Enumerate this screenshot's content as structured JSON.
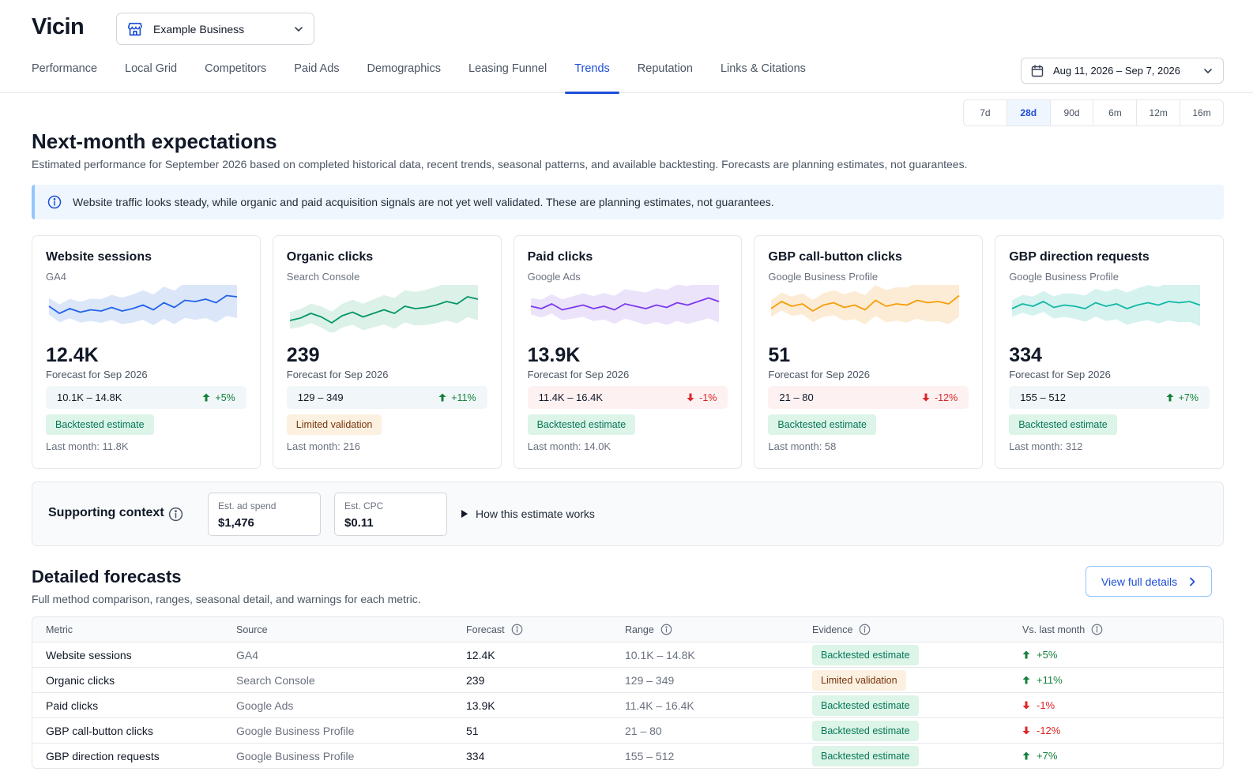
{
  "app": {
    "logo": "Vicin",
    "business": "Example Business"
  },
  "nav": {
    "items": [
      {
        "label": "Performance",
        "active": false
      },
      {
        "label": "Local Grid",
        "active": false
      },
      {
        "label": "Competitors",
        "active": false
      },
      {
        "label": "Paid Ads",
        "active": false
      },
      {
        "label": "Demographics",
        "active": false
      },
      {
        "label": "Leasing Funnel",
        "active": false
      },
      {
        "label": "Trends",
        "active": true
      },
      {
        "label": "Reputation",
        "active": false
      },
      {
        "label": "Links & Citations",
        "active": false
      }
    ]
  },
  "date_range": "Aug 11, 2026 – Sep 7, 2026",
  "ranges": {
    "options": [
      "7d",
      "28d",
      "90d",
      "6m",
      "12m",
      "16m"
    ],
    "selected": "28d"
  },
  "page": {
    "title": "Next-month expectations",
    "subtitle": "Estimated performance for September 2026 based on completed historical data, recent trends, seasonal patterns, and available backtesting. Forecasts are planning estimates, not guarantees.",
    "banner": "Website traffic looks steady, while organic and paid acquisition signals are not yet well validated. These are planning estimates, not guarantees."
  },
  "cards": [
    {
      "title": "Website sessions",
      "source": "GA4",
      "value": "12.4K",
      "forecast_label": "Forecast for Sep 2026",
      "range": "10.1K – 14.8K",
      "delta": "+5%",
      "direction": "up",
      "badge": "Backtested estimate",
      "badge_type": "green",
      "last_month": "Last month: 11.8K",
      "color": "#2563eb",
      "band_color": "#dbe6f9",
      "spark": [
        52,
        46,
        50,
        47,
        49,
        48,
        51,
        48,
        50,
        53,
        49,
        55,
        51,
        57,
        56,
        58,
        55,
        61,
        60
      ]
    },
    {
      "title": "Organic clicks",
      "source": "Search Console",
      "value": "239",
      "forecast_label": "Forecast for Sep 2026",
      "range": "129 – 349",
      "delta": "+11%",
      "direction": "up",
      "badge": "Limited validation",
      "badge_type": "amber",
      "last_month": "Last month: 216",
      "color": "#059669",
      "band_color": "#dcf1e8",
      "spark": [
        40,
        42,
        46,
        43,
        38,
        44,
        47,
        43,
        46,
        49,
        46,
        52,
        50,
        51,
        53,
        56,
        54,
        60,
        58
      ]
    },
    {
      "title": "Paid clicks",
      "source": "Google Ads",
      "value": "13.9K",
      "forecast_label": "Forecast for Sep 2026",
      "range": "11.4K – 16.4K",
      "delta": "-1%",
      "direction": "down",
      "badge": "Backtested estimate",
      "badge_type": "green",
      "last_month": "Last month: 14.0K",
      "color": "#7c3aed",
      "band_color": "#ebe3fa",
      "spark": [
        52,
        50,
        54,
        49,
        51,
        53,
        50,
        52,
        49,
        54,
        52,
        50,
        53,
        51,
        55,
        53,
        56,
        59,
        56
      ]
    },
    {
      "title": "GBP call-button clicks",
      "source": "Google Business Profile",
      "value": "51",
      "forecast_label": "Forecast for Sep 2026",
      "range": "21 – 80",
      "delta": "-12%",
      "direction": "down",
      "badge": "Backtested estimate",
      "badge_type": "green",
      "last_month": "Last month: 58",
      "color": "#f59e0b",
      "band_color": "#fcecd5",
      "spark": [
        50,
        56,
        52,
        54,
        48,
        53,
        55,
        51,
        53,
        49,
        57,
        52,
        54,
        53,
        57,
        55,
        56,
        54,
        61
      ]
    },
    {
      "title": "GBP direction requests",
      "source": "Google Business Profile",
      "value": "334",
      "forecast_label": "Forecast for Sep 2026",
      "range": "155 – 512",
      "delta": "+7%",
      "direction": "up",
      "badge": "Backtested estimate",
      "badge_type": "green",
      "last_month": "Last month: 312",
      "color": "#14b8a6",
      "band_color": "#d5f2ef",
      "spark": [
        50,
        54,
        52,
        56,
        51,
        53,
        52,
        50,
        55,
        52,
        54,
        50,
        53,
        55,
        53,
        56,
        55,
        56,
        53
      ]
    }
  ],
  "context": {
    "title": "Supporting context",
    "ad_spend_label": "Est. ad spend",
    "ad_spend_value": "$1,476",
    "cpc_label": "Est. CPC",
    "cpc_value": "$0.11",
    "how_label": "How this estimate works"
  },
  "details": {
    "title": "Detailed forecasts",
    "subtitle": "Full method comparison, ranges, seasonal detail, and warnings for each metric.",
    "view_button": "View full details",
    "columns": [
      "Metric",
      "Source",
      "Forecast",
      "Range",
      "Evidence",
      "Vs. last month"
    ],
    "rows": [
      {
        "metric": "Website sessions",
        "source": "GA4",
        "forecast": "12.4K",
        "range": "10.1K – 14.8K",
        "evidence": "Backtested estimate",
        "evidence_type": "green",
        "delta": "+5%",
        "direction": "up"
      },
      {
        "metric": "Organic clicks",
        "source": "Search Console",
        "forecast": "239",
        "range": "129 – 349",
        "evidence": "Limited validation",
        "evidence_type": "amber",
        "delta": "+11%",
        "direction": "up"
      },
      {
        "metric": "Paid clicks",
        "source": "Google Ads",
        "forecast": "13.9K",
        "range": "11.4K – 16.4K",
        "evidence": "Backtested estimate",
        "evidence_type": "green",
        "delta": "-1%",
        "direction": "down"
      },
      {
        "metric": "GBP call-button clicks",
        "source": "Google Business Profile",
        "forecast": "51",
        "range": "21 – 80",
        "evidence": "Backtested estimate",
        "evidence_type": "green",
        "delta": "-12%",
        "direction": "down"
      },
      {
        "metric": "GBP direction requests",
        "source": "Google Business Profile",
        "forecast": "334",
        "range": "155 – 512",
        "evidence": "Backtested estimate",
        "evidence_type": "green",
        "delta": "+7%",
        "direction": "up"
      }
    ]
  }
}
